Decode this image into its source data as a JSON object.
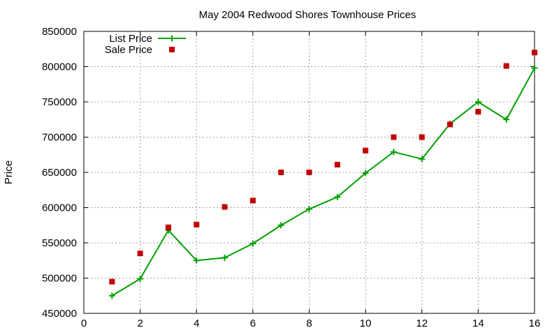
{
  "chart_data": {
    "type": "line",
    "title": "May 2004 Redwood Shores Townhouse Prices",
    "xlabel": "",
    "ylabel": "Price",
    "xlim": [
      0,
      16
    ],
    "ylim": [
      450000,
      850000
    ],
    "xticks": [
      0,
      2,
      4,
      6,
      8,
      10,
      12,
      14,
      16
    ],
    "yticks": [
      450000,
      500000,
      550000,
      600000,
      650000,
      700000,
      750000,
      800000,
      850000
    ],
    "grid": true,
    "legend_position": "top-left",
    "x": [
      1,
      2,
      3,
      4,
      5,
      6,
      7,
      8,
      9,
      10,
      11,
      12,
      13,
      14,
      15,
      16
    ],
    "series": [
      {
        "name": "List Price",
        "style": "linespoints",
        "marker": "plus",
        "color": "#00a000",
        "values": [
          475000,
          499000,
          568000,
          525000,
          529000,
          549000,
          575000,
          598000,
          615000,
          649000,
          679000,
          669000,
          719000,
          750000,
          725000,
          798000
        ]
      },
      {
        "name": "Sale Price",
        "style": "points",
        "marker": "square",
        "color": "#c00000",
        "values": [
          495000,
          535000,
          572000,
          576000,
          601000,
          610000,
          650000,
          650000,
          661000,
          681000,
          700000,
          700000,
          718000,
          736000,
          801000,
          820000
        ]
      }
    ]
  }
}
